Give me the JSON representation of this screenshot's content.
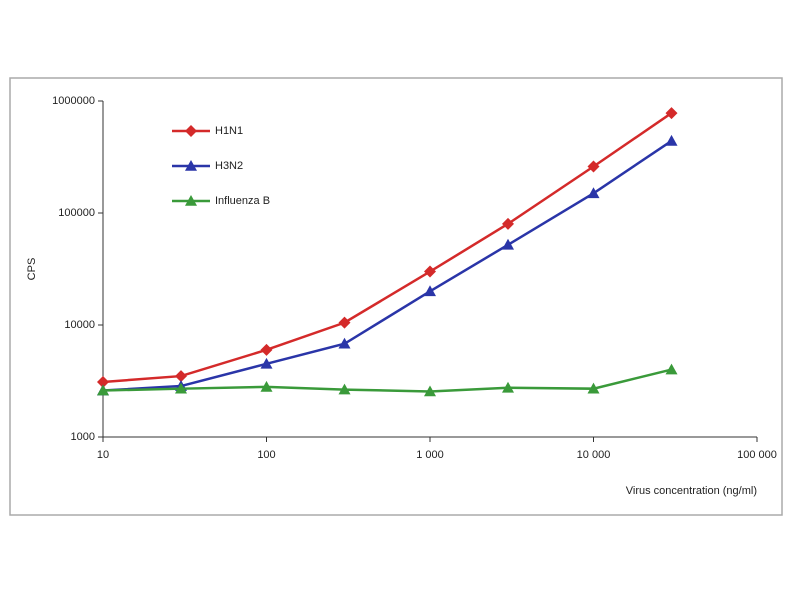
{
  "chart_data": {
    "type": "line",
    "xscale": "log",
    "yscale": "log",
    "y_label": "CPS",
    "x_label": "Virus concentration (ng/ml)",
    "x": [
      10,
      30,
      100,
      300,
      1000,
      3000,
      10000,
      30000
    ],
    "series": [
      {
        "name": "H1N1",
        "color": "#d42a2a",
        "marker": "diamond",
        "values": [
          3100,
          3500,
          6000,
          10500,
          30000,
          80000,
          260000,
          780000
        ]
      },
      {
        "name": "H3N2",
        "color": "#2a35a8",
        "marker": "triangle",
        "values": [
          2600,
          2850,
          4500,
          6800,
          20000,
          52000,
          150000,
          440000
        ]
      },
      {
        "name": "Influenza B",
        "color": "#3a9a3a",
        "marker": "triangle",
        "values": [
          2600,
          2700,
          2800,
          2650,
          2550,
          2750,
          2700,
          4000
        ]
      }
    ],
    "xlim": [
      10,
      100000
    ],
    "xticks": [
      10,
      100,
      {
        "value": 1000,
        "label": "1 000"
      },
      {
        "value": 10000,
        "label": "10 000"
      },
      {
        "value": 100000,
        "label": "100 000"
      }
    ],
    "ylim": [
      1000,
      1000000
    ],
    "yticks": [
      1000,
      10000,
      100000,
      1000000
    ],
    "legend": "upper left",
    "grid": false
  }
}
